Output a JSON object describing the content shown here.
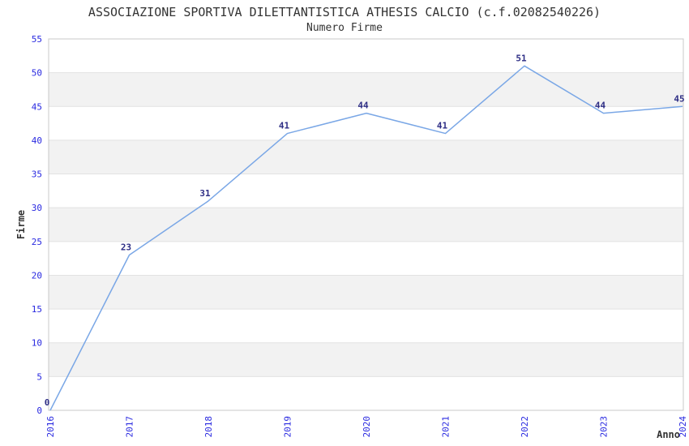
{
  "chart_data": {
    "type": "line",
    "title": "ASSOCIAZIONE SPORTIVA DILETTANTISTICA ATHESIS CALCIO (c.f.02082540226)",
    "subtitle": "Numero Firme",
    "xlabel": "Anno",
    "ylabel": "Firme",
    "x": [
      2016,
      2017,
      2018,
      2019,
      2020,
      2021,
      2022,
      2023,
      2024
    ],
    "values": [
      0,
      23,
      31,
      41,
      44,
      41,
      51,
      44,
      45
    ],
    "ylim": [
      0,
      55
    ],
    "ytick_step": 5,
    "grid": "horizontal-bands",
    "legend": "none",
    "line_color": "#7aa7e6",
    "tick_label_color": "#2929e0",
    "point_label_color": "#2e2e85",
    "band_color": "#f2f2f2",
    "gridline_color": "#e2e2e2",
    "border_color": "#c8c8c8",
    "title_color": "#333333"
  }
}
